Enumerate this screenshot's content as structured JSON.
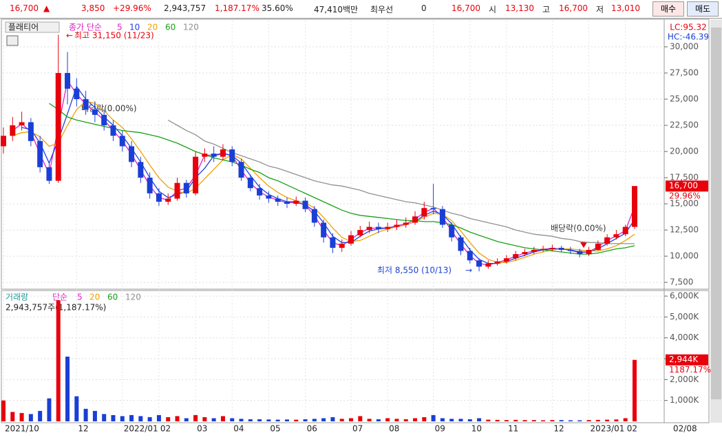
{
  "ticker_bar": {
    "price": "16,700",
    "change": "3,850",
    "change_pct": "+29.96%",
    "volume": "2,943,757",
    "volume_ratio": "1,187.17%",
    "turnover": "35.60%",
    "amount": "47,410백만",
    "best_label": "최우선",
    "best_value": "0",
    "ask": "16,700",
    "open_label": "시",
    "open": "13,130",
    "high_label": "고",
    "high": "16,700",
    "low_label": "저",
    "low": "13,010",
    "buy": "매수",
    "sell": "매도"
  },
  "chart_data": [
    {
      "type": "candlestick",
      "title": "플래티어",
      "legend_title": "종가 단순",
      "categories": [
        "2021/10",
        null,
        null,
        null,
        null,
        null,
        null,
        null,
        "12",
        null,
        null,
        null,
        null,
        "2022/01",
        null,
        null,
        null,
        "02",
        null,
        null,
        null,
        "03",
        null,
        null,
        null,
        "04",
        null,
        null,
        null,
        "05",
        null,
        null,
        null,
        "06",
        null,
        null,
        null,
        null,
        "07",
        null,
        null,
        null,
        "08",
        null,
        null,
        null,
        null,
        "09",
        null,
        null,
        null,
        "10",
        null,
        null,
        null,
        "11",
        null,
        null,
        null,
        null,
        "12",
        null,
        null,
        null,
        "2023/01",
        null,
        null,
        null,
        "02",
        null
      ],
      "x_end_label": "02/08",
      "open": [
        20500,
        21500,
        22500,
        22800,
        21000,
        18500,
        17200,
        27500,
        26000,
        25000,
        24000,
        23500,
        22500,
        21500,
        20500,
        19000,
        17500,
        16000,
        15200,
        15500,
        17000,
        16000,
        19500,
        19800,
        19500,
        20200,
        19000,
        17500,
        16500,
        15800,
        15500,
        15200,
        15000,
        15300,
        14500,
        13200,
        11800,
        10800,
        11200,
        12000,
        12500,
        12800,
        12600,
        12800,
        13000,
        13200,
        13800,
        14600,
        14500,
        13000,
        11800,
        10500,
        9600,
        9000,
        9300,
        9500,
        9800,
        10200,
        10400,
        10600,
        10700,
        10800,
        10600,
        10500,
        10200,
        10600,
        11200,
        11800,
        12100,
        12800
      ],
      "high": [
        22300,
        23300,
        23800,
        23200,
        21500,
        19000,
        31150,
        29500,
        27000,
        25800,
        24800,
        24000,
        23000,
        22000,
        21000,
        19500,
        18000,
        16500,
        16000,
        17500,
        17300,
        20000,
        20300,
        20500,
        20700,
        20500,
        19300,
        17800,
        16900,
        16200,
        15800,
        15600,
        15700,
        15600,
        14800,
        13500,
        12200,
        11600,
        12400,
        12900,
        13300,
        13200,
        13200,
        13500,
        13700,
        14300,
        15200,
        16900,
        14800,
        13200,
        12000,
        10800,
        9800,
        9600,
        9800,
        10100,
        10500,
        10700,
        10900,
        11000,
        11100,
        11000,
        10900,
        10700,
        10900,
        11500,
        12100,
        12500,
        13000,
        16700
      ],
      "low": [
        19800,
        21000,
        22000,
        20500,
        18000,
        16900,
        17000,
        24500,
        24300,
        23500,
        22800,
        22000,
        21000,
        20000,
        18500,
        17000,
        15500,
        14800,
        14900,
        15300,
        15600,
        15800,
        19000,
        19000,
        19200,
        18600,
        17200,
        16200,
        15400,
        15100,
        14800,
        14600,
        14800,
        14200,
        12800,
        11300,
        10300,
        10400,
        11000,
        11800,
        12200,
        12200,
        12300,
        12500,
        12700,
        13000,
        13500,
        14000,
        12700,
        11400,
        10100,
        9300,
        8550,
        8800,
        9100,
        9300,
        9600,
        10000,
        10200,
        10400,
        10500,
        10400,
        10200,
        9900,
        10000,
        10500,
        11000,
        11600,
        11900,
        12600
      ],
      "close": [
        21500,
        22500,
        22800,
        21000,
        18500,
        17200,
        27500,
        26000,
        25000,
        24000,
        23500,
        22500,
        21500,
        20500,
        19000,
        17500,
        16000,
        15200,
        15500,
        17000,
        16000,
        19500,
        19800,
        19500,
        20200,
        19000,
        17500,
        16500,
        15800,
        15500,
        15200,
        15000,
        15300,
        14500,
        13200,
        11800,
        10800,
        11200,
        12000,
        12500,
        12800,
        12600,
        12800,
        13000,
        13200,
        13800,
        14600,
        14500,
        13000,
        11800,
        10500,
        9600,
        9000,
        9300,
        9500,
        9800,
        10200,
        10400,
        10600,
        10700,
        10800,
        10600,
        10500,
        10200,
        10600,
        11200,
        11800,
        12100,
        12800,
        16700
      ],
      "up_color": "#e8000b",
      "down_color": "#1a3fd6",
      "series": [
        {
          "name": "5",
          "color": "#e020c0",
          "values": [
            null,
            22000,
            22650,
            21900,
            19750,
            17850,
            22350,
            26750,
            25500,
            24500,
            23750,
            23000,
            22000,
            21000,
            19750,
            18250,
            16750,
            15600,
            15350,
            16250,
            16500,
            17750,
            19650,
            19650,
            19850,
            19600,
            18250,
            17000,
            16150,
            15650,
            15350,
            15100,
            15150,
            14900,
            13850,
            12500,
            11300,
            11000,
            11600,
            12250,
            12650,
            12700,
            12700,
            12900,
            13100,
            13500,
            14200,
            14550,
            13750,
            12400,
            11150,
            10050,
            9300,
            9150,
            9400,
            9650,
            10000,
            10300,
            10500,
            10650,
            10750,
            10700,
            10550,
            10350,
            10400,
            10900,
            11500,
            11950,
            12450,
            14750
          ]
        },
        {
          "name": "10",
          "color": "#2040e0",
          "values": [
            null,
            null,
            22300,
            22100,
            20800,
            18900,
            21100,
            23600,
            26200,
            25000,
            24200,
            23300,
            22500,
            21500,
            20300,
            19000,
            17500,
            16200,
            15600,
            15900,
            16200,
            17500,
            18400,
            19600,
            19800,
            19600,
            18900,
            17700,
            16600,
            15900,
            15500,
            15200,
            15200,
            14900,
            14300,
            13200,
            11900,
            11300,
            11300,
            11900,
            12400,
            12600,
            12700,
            12800,
            13000,
            13300,
            13900,
            14300,
            14000,
            13100,
            11800,
            10600,
            9700,
            9300,
            9300,
            9500,
            9800,
            10100,
            10400,
            10600,
            10700,
            10700,
            10600,
            10400,
            10400,
            10700,
            11200,
            11700,
            12200,
            13500
          ]
        },
        {
          "name": "20",
          "color": "#f0a000",
          "values": [
            null,
            21500,
            21800,
            21900,
            21400,
            20500,
            20800,
            22500,
            24000,
            24800,
            24600,
            23900,
            23000,
            22300,
            21200,
            20000,
            18700,
            17500,
            16600,
            16200,
            16000,
            16500,
            17400,
            18300,
            19200,
            19700,
            19300,
            18400,
            17500,
            16700,
            16100,
            15600,
            15300,
            15100,
            14600,
            13700,
            12700,
            11800,
            11400,
            11500,
            11900,
            12300,
            12600,
            12800,
            13000,
            13300,
            13700,
            14100,
            14000,
            13400,
            12400,
            11300,
            10300,
            9700,
            9400,
            9400,
            9600,
            9900,
            10200,
            10400,
            10600,
            10700,
            10700,
            10600,
            10500,
            10500,
            10700,
            11000,
            11500,
            12100
          ]
        },
        {
          "name": "60",
          "color": "#18a018",
          "values": [
            null,
            null,
            null,
            null,
            null,
            24600,
            24000,
            23300,
            23000,
            22800,
            22600,
            22400,
            22200,
            22000,
            21900,
            21800,
            21600,
            21400,
            21100,
            20800,
            20400,
            20000,
            19700,
            19400,
            19200,
            19000,
            18700,
            18300,
            18000,
            17500,
            17200,
            16800,
            16400,
            16000,
            15600,
            15200,
            14800,
            14400,
            14100,
            13900,
            13800,
            13700,
            13600,
            13500,
            13400,
            13400,
            13300,
            13300,
            13200,
            13000,
            12700,
            12300,
            12000,
            11700,
            11400,
            11200,
            11000,
            10800,
            10700,
            10600,
            10500,
            10400,
            10300,
            10200,
            10200,
            10300,
            10500,
            10700,
            10800,
            11000
          ]
        },
        {
          "name": "120",
          "color": "#909090",
          "values": [
            null,
            null,
            null,
            null,
            null,
            null,
            null,
            null,
            null,
            null,
            null,
            null,
            null,
            null,
            null,
            null,
            null,
            null,
            23000,
            22500,
            22000,
            21600,
            21000,
            20700,
            20300,
            19900,
            19600,
            19300,
            19000,
            18600,
            18400,
            18100,
            17800,
            17500,
            17200,
            17000,
            16800,
            16700,
            16500,
            16300,
            16000,
            15800,
            15600,
            15400,
            15200,
            15100,
            14900,
            14700,
            14400,
            14100,
            13900,
            13600,
            13400,
            13200,
            13000,
            12800,
            12500,
            12300,
            12100,
            12000,
            11900,
            11700,
            11600,
            11400,
            11300,
            11300,
            11200,
            11200,
            11200,
            11200
          ]
        }
      ],
      "ylim": [
        6850,
        32500
      ],
      "yticks": [
        {
          "value": 7500,
          "label": "7,500"
        },
        {
          "value": 10000,
          "label": "10,000"
        },
        {
          "value": 12500,
          "label": "12,500"
        },
        {
          "value": 15000,
          "label": "15,000"
        },
        {
          "value": 17500,
          "label": "17,500"
        },
        {
          "value": 20000,
          "label": "20,000"
        },
        {
          "value": 22500,
          "label": "22,500"
        },
        {
          "value": 25000,
          "label": "25,000"
        },
        {
          "value": 27500,
          "label": "27,500"
        },
        {
          "value": 30000,
          "label": "30,000"
        }
      ],
      "grid": true,
      "annotations": {
        "high": "최고 31,150 (11/23)",
        "low": "최저 8,550 (10/13)",
        "dividend": [
          "배당락(0.00%)",
          "배당락(0.00%)"
        ]
      },
      "indicator": [
        "LC:95.32",
        "HC:-46.39"
      ],
      "last_price": {
        "value": 16700,
        "label": "16,700",
        "change": "29.96%"
      }
    },
    {
      "type": "bar",
      "legend_title": "거래량",
      "legend_sub": "단순",
      "legend_items": [
        {
          "name": "5",
          "color": "#e020c0"
        },
        {
          "name": "20",
          "color": "#f0a000"
        },
        {
          "name": "60",
          "color": "#18a018"
        },
        {
          "name": "120",
          "color": "#909090"
        }
      ],
      "summary": "2,943,757주(1,187.17%)",
      "values": [
        1000000,
        450000,
        400000,
        350000,
        500000,
        1100000,
        5800000,
        3100000,
        1200000,
        600000,
        500000,
        350000,
        300000,
        250000,
        300000,
        250000,
        200000,
        300000,
        200000,
        250000,
        150000,
        300000,
        200000,
        150000,
        250000,
        150000,
        120000,
        100000,
        100000,
        90000,
        80000,
        90000,
        80000,
        100000,
        120000,
        150000,
        200000,
        120000,
        150000,
        250000,
        120000,
        100000,
        150000,
        120000,
        100000,
        150000,
        200000,
        300000,
        150000,
        120000,
        120000,
        100000,
        150000,
        80000,
        70000,
        60000,
        70000,
        60000,
        60000,
        50000,
        60000,
        60000,
        50000,
        50000,
        60000,
        70000,
        80000,
        90000,
        150000,
        2943757
      ],
      "ylim": [
        0,
        6200000
      ],
      "yticks": [
        {
          "value": 1000000,
          "label": "1,000K"
        },
        {
          "value": 2000000,
          "label": "2,000K"
        },
        {
          "value": 3000000,
          "label": "3,000K"
        },
        {
          "value": 4000000,
          "label": "4,000K"
        },
        {
          "value": 5000000,
          "label": "5,000K"
        },
        {
          "value": 6000000,
          "label": "6,000K"
        }
      ],
      "last_value": {
        "value": 2943757,
        "label": "2,944K",
        "change": "1187.17%"
      }
    }
  ]
}
